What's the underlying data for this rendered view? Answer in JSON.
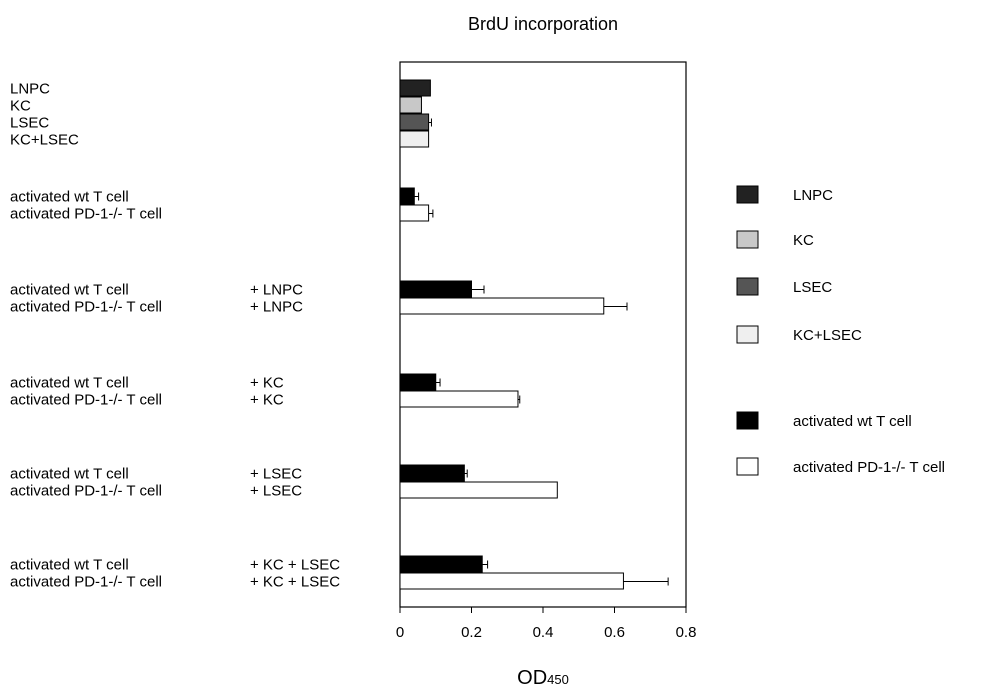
{
  "chart_data": {
    "type": "bar",
    "orientation": "horizontal",
    "title": "BrdU incorporation",
    "xlabel": "OD",
    "xlabel_subscript": "450",
    "xlim": [
      0,
      0.8
    ],
    "xticks": [
      "0",
      "0.2",
      "0.4",
      "0.6",
      "0.8"
    ],
    "grid": false,
    "legend_position": "right",
    "groups": [
      {
        "bars": [
          {
            "label": "LNPC",
            "condition": "",
            "series": "LNPC",
            "value": 0.085,
            "error": 0.0
          },
          {
            "label": "KC",
            "condition": "",
            "series": "KC",
            "value": 0.06,
            "error": 0.0
          },
          {
            "label": "LSEC",
            "condition": "",
            "series": "LSEC",
            "value": 0.08,
            "error": 0.008
          },
          {
            "label": "KC+LSEC",
            "condition": "",
            "series": "KC+LSEC",
            "value": 0.08,
            "error": 0.0
          }
        ]
      },
      {
        "bars": [
          {
            "label": "activated wt T cell",
            "condition": "",
            "series": "activated wt T cell",
            "value": 0.04,
            "error": 0.012
          },
          {
            "label": "activated PD-1-/- T cell",
            "condition": "",
            "series": "activated PD-1-/- T cell",
            "value": 0.08,
            "error": 0.012
          }
        ]
      },
      {
        "bars": [
          {
            "label": "activated wt T cell",
            "condition": "+ LNPC",
            "series": "activated wt T cell",
            "value": 0.2,
            "error": 0.035
          },
          {
            "label": "activated PD-1-/- T cell",
            "condition": "+ LNPC",
            "series": "activated PD-1-/- T cell",
            "value": 0.57,
            "error": 0.065
          }
        ]
      },
      {
        "bars": [
          {
            "label": "activated wt T cell",
            "condition": "+ KC",
            "series": "activated wt T cell",
            "value": 0.1,
            "error": 0.012
          },
          {
            "label": "activated PD-1-/- T cell",
            "condition": "+ KC",
            "series": "activated PD-1-/- T cell",
            "value": 0.33,
            "error": 0.005
          }
        ]
      },
      {
        "bars": [
          {
            "label": "activated wt T cell",
            "condition": "+ LSEC",
            "series": "activated wt T cell",
            "value": 0.18,
            "error": 0.008
          },
          {
            "label": "activated PD-1-/- T cell",
            "condition": "+ LSEC",
            "series": "activated PD-1-/- T cell",
            "value": 0.44,
            "error": 0.0
          }
        ]
      },
      {
        "bars": [
          {
            "label": "activated wt T cell",
            "condition": "+ KC + LSEC",
            "series": "activated wt T cell",
            "value": 0.23,
            "error": 0.015
          },
          {
            "label": "activated PD-1-/- T cell",
            "condition": "+ KC + LSEC",
            "series": "activated PD-1-/- T cell",
            "value": 0.625,
            "error": 0.125
          }
        ]
      }
    ],
    "legend": [
      {
        "name": "LNPC",
        "color": "#222222"
      },
      {
        "name": "KC",
        "color": "#c8c8c8"
      },
      {
        "name": "LSEC",
        "color": "#555555"
      },
      {
        "name": "KC+LSEC",
        "color": "#efefef"
      },
      {
        "name": "activated wt T cell",
        "color": "#000000"
      },
      {
        "name": "activated PD-1-/- T cell",
        "color": "#ffffff"
      }
    ]
  }
}
